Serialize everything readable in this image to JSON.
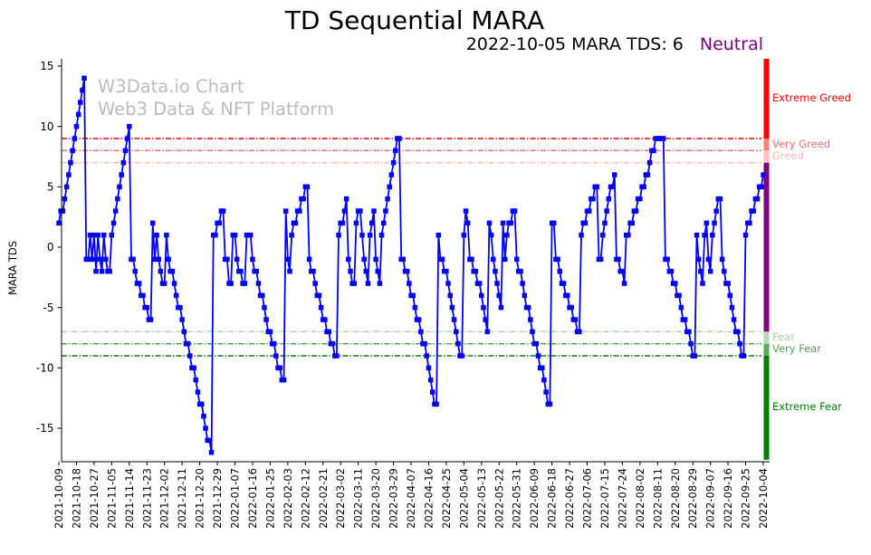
{
  "page": {
    "title": "TD Sequential MARA",
    "subtitle_left": "2022-10-05 MARA TDS: 6",
    "subtitle_status": "Neutral",
    "subtitle_status_style": "color:#800080"
  },
  "watermark": {
    "line1": "W3Data.io Chart",
    "line2": "Web3 Data & NFT Platform"
  },
  "chart_data": {
    "type": "line",
    "title": "TD Sequential MARA",
    "subtitle": "2022-10-05 MARA TDS: 6 Neutral",
    "ylabel": "MARA TDS",
    "xlabel": "",
    "ylim": [
      -17.6,
      15.6
    ],
    "grid": false,
    "legend": "none",
    "line_color": "#0000ff",
    "marker": "square",
    "y_ticks": [
      15,
      10,
      5,
      0,
      -5,
      -10,
      -15
    ],
    "x_tick_labels": [
      "2021-10-09",
      "2021-10-18",
      "2021-10-27",
      "2021-11-05",
      "2021-11-14",
      "2021-11-23",
      "2021-12-02",
      "2021-12-11",
      "2021-12-20",
      "2021-12-29",
      "2022-01-07",
      "2022-01-16",
      "2022-01-25",
      "2022-02-03",
      "2022-02-12",
      "2022-02-21",
      "2022-03-02",
      "2022-03-11",
      "2022-03-20",
      "2022-03-29",
      "2022-04-07",
      "2022-04-16",
      "2022-04-25",
      "2022-05-04",
      "2022-05-13",
      "2022-05-22",
      "2022-05-31",
      "2022-06-09",
      "2022-06-18",
      "2022-06-27",
      "2022-07-06",
      "2022-07-15",
      "2022-07-24",
      "2022-08-02",
      "2022-08-11",
      "2022-08-20",
      "2022-08-29",
      "2022-09-07",
      "2022-09-16",
      "2022-09-25",
      "2022-10-04"
    ],
    "start_date": "2021-10-09",
    "end_date": "2022-10-04",
    "frequency": "daily",
    "values": [
      2,
      3,
      3,
      4,
      5,
      6,
      7,
      8,
      9,
      10,
      11,
      12,
      13,
      14,
      -1,
      -1,
      1,
      -1,
      1,
      -2,
      1,
      -1,
      -2,
      1,
      -1,
      -2,
      -2,
      1,
      2,
      3,
      4,
      5,
      6,
      7,
      8,
      9,
      10,
      -1,
      -1,
      -2,
      -3,
      -3,
      -4,
      -4,
      -5,
      -5,
      -6,
      -6,
      2,
      -1,
      1,
      -1,
      -2,
      -3,
      -3,
      1,
      -1,
      -2,
      -2,
      -3,
      -4,
      -5,
      -5,
      -6,
      -7,
      -8,
      -8,
      -9,
      -10,
      -10,
      -11,
      -12,
      -13,
      -13,
      -14,
      -15,
      -16,
      -16,
      -17,
      1,
      1,
      2,
      2,
      3,
      3,
      -1,
      -1,
      -3,
      -3,
      1,
      1,
      -1,
      -2,
      -2,
      -3,
      -3,
      1,
      1,
      1,
      -1,
      -2,
      -2,
      -3,
      -4,
      -4,
      -5,
      -6,
      -7,
      -7,
      -8,
      -8,
      -9,
      -10,
      -10,
      -11,
      -11,
      3,
      -1,
      -2,
      1,
      2,
      2,
      3,
      3,
      4,
      4,
      5,
      5,
      -1,
      -2,
      -2,
      -3,
      -4,
      -4,
      -5,
      -6,
      -6,
      -7,
      -7,
      -8,
      -8,
      -9,
      -9,
      1,
      2,
      2,
      3,
      4,
      -1,
      -2,
      -3,
      -3,
      2,
      3,
      3,
      1,
      -1,
      -2,
      -3,
      1,
      2,
      3,
      -1,
      -2,
      -3,
      1,
      2,
      3,
      4,
      5,
      6,
      7,
      8,
      9,
      9,
      -1,
      -1,
      -2,
      -2,
      -3,
      -4,
      -4,
      -5,
      -6,
      -6,
      -7,
      -8,
      -8,
      -9,
      -10,
      -11,
      -12,
      -13,
      -13,
      1,
      -1,
      -1,
      -2,
      -2,
      -3,
      -4,
      -5,
      -6,
      -7,
      -8,
      -9,
      -9,
      1,
      3,
      2,
      -1,
      -1,
      -2,
      -2,
      -3,
      -3,
      -4,
      -5,
      -6,
      -7,
      2,
      1,
      -1,
      -2,
      -3,
      -4,
      -5,
      2,
      -1,
      1,
      2,
      2,
      3,
      3,
      -1,
      -2,
      -2,
      -3,
      -4,
      -5,
      -5,
      -6,
      -7,
      -8,
      -8,
      -9,
      -10,
      -10,
      -11,
      -12,
      -13,
      -13,
      2,
      2,
      -1,
      -1,
      -2,
      -3,
      -3,
      -4,
      -4,
      -5,
      -5,
      -6,
      -6,
      -7,
      -7,
      1,
      2,
      2,
      3,
      3,
      4,
      4,
      5,
      5,
      -1,
      -1,
      1,
      2,
      3,
      4,
      5,
      5,
      6,
      -1,
      -1,
      -2,
      -2,
      -3,
      1,
      1,
      2,
      2,
      3,
      3,
      4,
      4,
      5,
      5,
      6,
      6,
      7,
      8,
      8,
      9,
      9,
      9,
      9,
      9,
      -1,
      -1,
      -2,
      -2,
      -3,
      -3,
      -4,
      -4,
      -5,
      -6,
      -6,
      -7,
      -7,
      -8,
      -9,
      -9,
      1,
      -1,
      -2,
      -3,
      1,
      2,
      -1,
      -2,
      1,
      2,
      3,
      4,
      4,
      -1,
      -2,
      -3,
      -3,
      -4,
      -5,
      -6,
      -7,
      -7,
      -8,
      -9,
      -9,
      1,
      2,
      2,
      3,
      3,
      4,
      4,
      5,
      5,
      6
    ],
    "thresholds": [
      {
        "value": 9,
        "color": "#ee0000"
      },
      {
        "value": 8,
        "color": "#ff6666"
      },
      {
        "value": 7,
        "color": "#ffb6b6"
      },
      {
        "value": -7,
        "color": "#a8d8a8"
      },
      {
        "value": -8,
        "color": "#44a044"
      },
      {
        "value": -9,
        "color": "#008000"
      }
    ],
    "zones": [
      {
        "from": 15.6,
        "to": 9,
        "color": "#ff0000",
        "label": "Extreme Greed",
        "label_color": "#ff0000"
      },
      {
        "from": 9,
        "to": 8,
        "color": "#ff8080",
        "label": "Very Greed",
        "label_color": "#ff6666"
      },
      {
        "from": 8,
        "to": 7,
        "color": "#ffc0c0",
        "label": "Greed",
        "label_color": "#ffb6b6"
      },
      {
        "from": 7,
        "to": -7,
        "color": "#800080",
        "label": "",
        "label_color": ""
      },
      {
        "from": -7,
        "to": -8,
        "color": "#b4dcb4",
        "label": "Fear",
        "label_color": "#a0d0a0"
      },
      {
        "from": -8,
        "to": -9,
        "color": "#5aaa5a",
        "label": "Very Fear",
        "label_color": "#50a050"
      },
      {
        "from": -9,
        "to": -17.6,
        "color": "#008000",
        "label": "Extreme Fear",
        "label_color": "#008000"
      }
    ]
  }
}
